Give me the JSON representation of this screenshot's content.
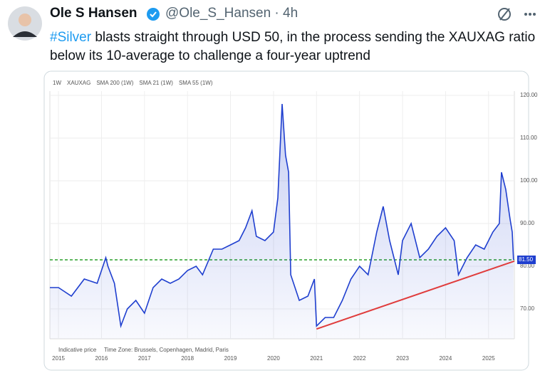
{
  "tweet": {
    "name": "Ole S Hansen",
    "handle": "@Ole_S_Hansen · 4h",
    "hashtag": "#Silver",
    "text": "blasts straight through USD 50, in the process sending the XAUXAG ratio below its 10-average to challenge a four-year uptrend"
  },
  "chart_data": {
    "type": "line",
    "header": [
      "1W",
      "XAUXAG",
      "SMA 200 (1W)",
      "SMA 21 (1W)",
      "SMA 55 (1W)"
    ],
    "footer": [
      "Indicative price",
      "Time Zone: Brussels, Copenhagen, Madrid, Paris"
    ],
    "x": [
      2014.8,
      2015.0,
      2015.3,
      2015.6,
      2015.9,
      2016.1,
      2016.15,
      2016.3,
      2016.45,
      2016.6,
      2016.8,
      2017.0,
      2017.2,
      2017.4,
      2017.6,
      2017.8,
      2018.0,
      2018.2,
      2018.35,
      2018.6,
      2018.8,
      2019.0,
      2019.2,
      2019.35,
      2019.5,
      2019.6,
      2019.8,
      2020.0,
      2020.1,
      2020.2,
      2020.28,
      2020.35,
      2020.4,
      2020.6,
      2020.8,
      2020.95,
      2021.0,
      2021.2,
      2021.4,
      2021.6,
      2021.8,
      2022.0,
      2022.2,
      2022.4,
      2022.55,
      2022.7,
      2022.9,
      2023.0,
      2023.2,
      2023.4,
      2023.6,
      2023.8,
      2024.0,
      2024.2,
      2024.3,
      2024.5,
      2024.7,
      2024.9,
      2025.1,
      2025.25,
      2025.3,
      2025.4,
      2025.5,
      2025.55,
      2025.58
    ],
    "series": [
      {
        "name": "XAUXAG",
        "color": "#1f3fcf",
        "values": [
          75,
          75,
          73,
          77,
          76,
          82,
          80,
          76,
          66,
          70,
          72,
          69,
          75,
          77,
          76,
          77,
          79,
          80,
          78,
          84,
          84,
          85,
          86,
          89,
          93,
          87,
          86,
          88,
          96,
          118,
          106,
          102,
          78,
          72,
          73,
          77,
          66,
          68,
          68,
          72,
          77,
          80,
          78,
          88,
          94,
          86,
          78,
          86,
          90,
          82,
          84,
          87,
          89,
          86,
          78,
          82,
          85,
          84,
          88,
          90,
          102,
          98,
          91,
          88,
          81.5
        ]
      }
    ],
    "trendline": {
      "color": "#e03c3c",
      "x": [
        2021.0,
        2025.6
      ],
      "values": [
        65.3,
        81.2
      ]
    },
    "level": {
      "color": "#2aa12a",
      "value": 81.5,
      "label": "81.50"
    },
    "xlim": [
      2014.8,
      2025.6
    ],
    "xticks": [
      2015,
      2016,
      2017,
      2018,
      2019,
      2020,
      2021,
      2022,
      2023,
      2024,
      2025
    ],
    "ylim": [
      63,
      121
    ],
    "yticks": [
      {
        "value": 70,
        "label": "70.00"
      },
      {
        "value": 80,
        "label": "80.00"
      },
      {
        "value": 90,
        "label": "90.00"
      },
      {
        "value": 100,
        "label": "100.00"
      },
      {
        "value": 110,
        "label": "110.00"
      },
      {
        "value": 120,
        "label": "120.00"
      }
    ],
    "grid": true
  }
}
